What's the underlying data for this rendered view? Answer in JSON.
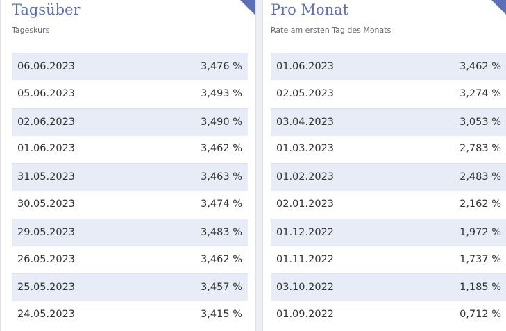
{
  "panels": [
    {
      "title": "Tagsüber",
      "subtitle": "Tageskurs",
      "rows": [
        [
          "06.06.2023",
          "3,476 %"
        ],
        [
          "05.06.2023",
          "3,493 %"
        ],
        [
          "02.06.2023",
          "3,490 %"
        ],
        [
          "01.06.2023",
          "3,462 %"
        ],
        [
          "31.05.2023",
          "3,463 %"
        ],
        [
          "30.05.2023",
          "3,474 %"
        ],
        [
          "29.05.2023",
          "3,483 %"
        ],
        [
          "26.05.2023",
          "3,462 %"
        ],
        [
          "25.05.2023",
          "3,457 %"
        ],
        [
          "24.05.2023",
          "3,415 %"
        ]
      ]
    },
    {
      "title": "Pro Monat",
      "subtitle": "Rate am ersten Tag des Monats",
      "rows": [
        [
          "01.06.2023",
          "3,462 %"
        ],
        [
          "02.05.2023",
          "3,274 %"
        ],
        [
          "03.04.2023",
          "3,053 %"
        ],
        [
          "01.03.2023",
          "2,783 %"
        ],
        [
          "01.02.2023",
          "2,483 %"
        ],
        [
          "02.01.2023",
          "2,162 %"
        ],
        [
          "01.12.2022",
          "1,972 %"
        ],
        [
          "01.11.2022",
          "1,737 %"
        ],
        [
          "03.10.2022",
          "1,185 %"
        ],
        [
          "01.09.2022",
          "0,712 %"
        ]
      ]
    }
  ]
}
